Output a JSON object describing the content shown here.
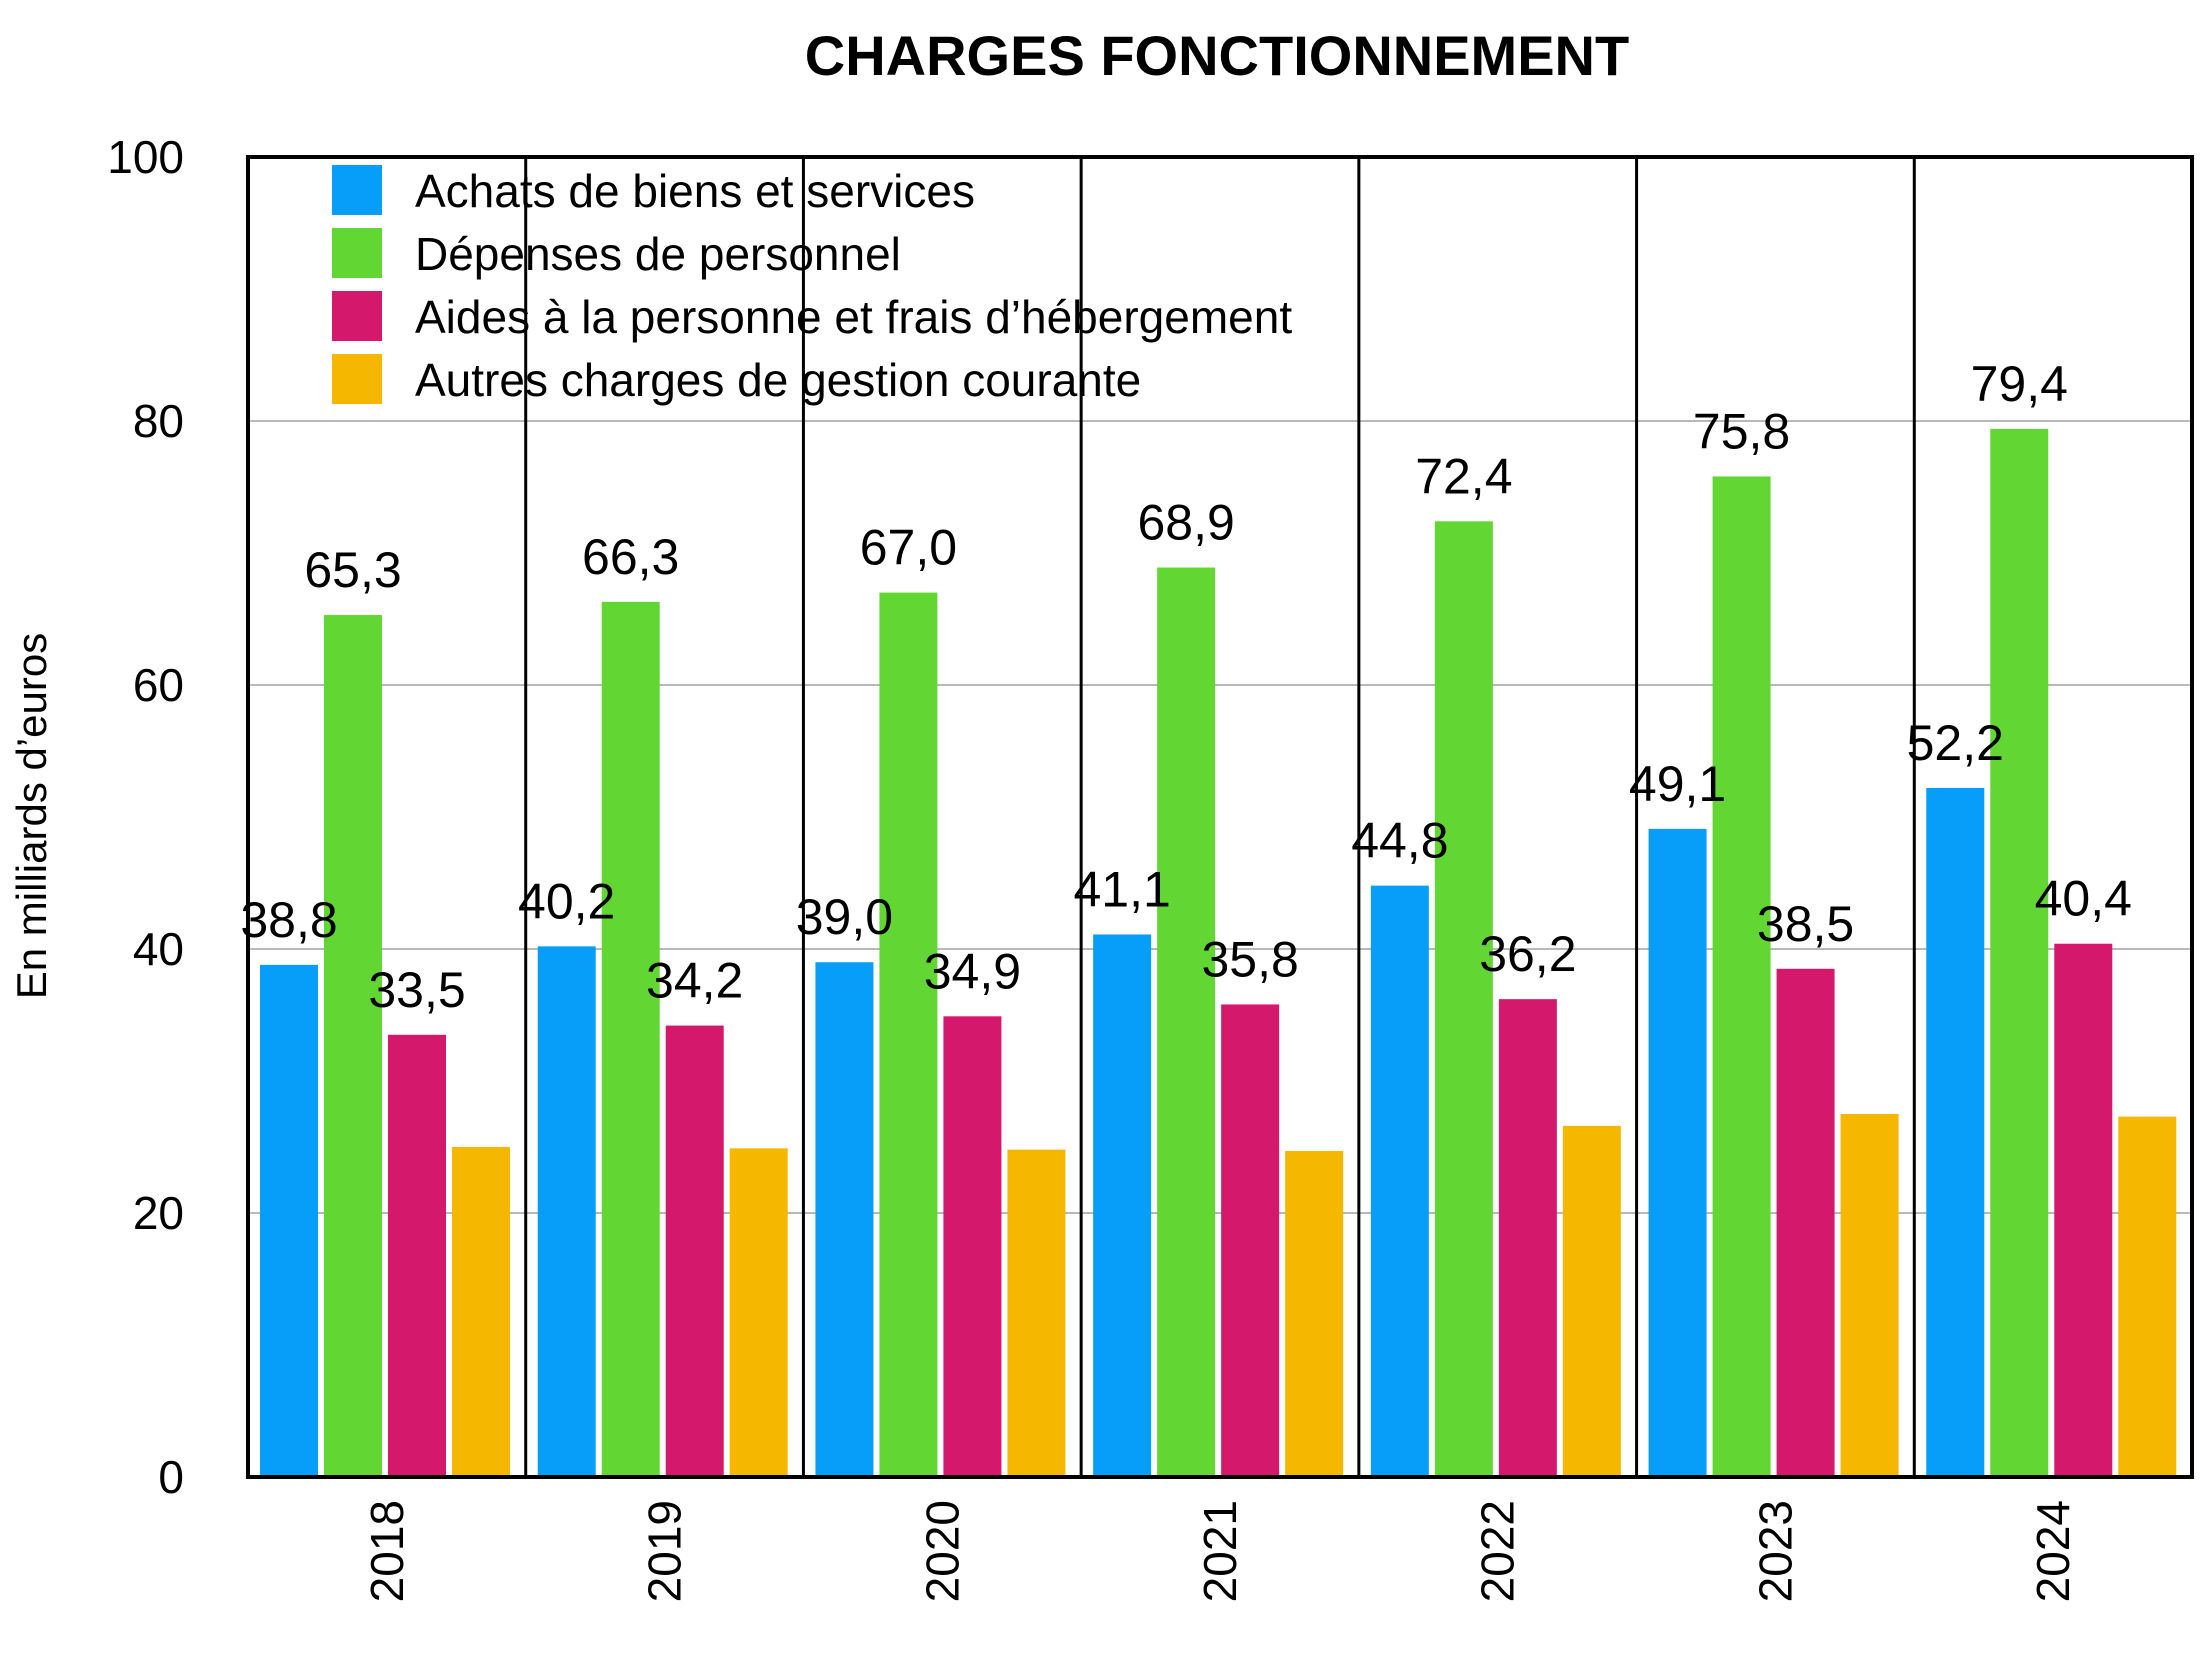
{
  "chart_data": {
    "type": "bar",
    "title": "CHARGES FONCTIONNEMENT",
    "xlabel": "",
    "ylabel": "En milliards d’euros",
    "ylim": [
      0,
      100
    ],
    "yticks": [
      0,
      20,
      40,
      60,
      80,
      100
    ],
    "grid": true,
    "legend_position": "top-left",
    "categories": [
      "2018",
      "2019",
      "2020",
      "2021",
      "2022",
      "2023",
      "2024"
    ],
    "series": [
      {
        "name": "Achats de biens et services",
        "color": "#069EF8",
        "values": [
          38.8,
          40.2,
          39.0,
          41.1,
          44.8,
          49.1,
          52.2
        ],
        "labels": [
          "38,8",
          "40,2",
          "39,0",
          "41,1",
          "44,8",
          "49,1",
          "52,2"
        ]
      },
      {
        "name": "Dépenses de personnel",
        "color": "#62D733",
        "values": [
          65.3,
          66.3,
          67.0,
          68.9,
          72.4,
          75.8,
          79.4
        ],
        "labels": [
          "65,3",
          "66,3",
          "67,0",
          "68,9",
          "72,4",
          "75,8",
          "79,4"
        ]
      },
      {
        "name": "Aides à la personne et frais d’hébergement",
        "color": "#D4186C",
        "values": [
          33.5,
          34.2,
          34.9,
          35.8,
          36.2,
          38.5,
          40.4
        ],
        "labels": [
          "33,5",
          "34,2",
          "34,9",
          "35,8",
          "36,2",
          "38,5",
          "40,4"
        ]
      },
      {
        "name": "Autres charges de gestion courante",
        "color": "#F6B700",
        "values": [
          25.0,
          24.9,
          24.8,
          24.7,
          26.6,
          27.5,
          27.3
        ],
        "labels": []
      }
    ]
  }
}
